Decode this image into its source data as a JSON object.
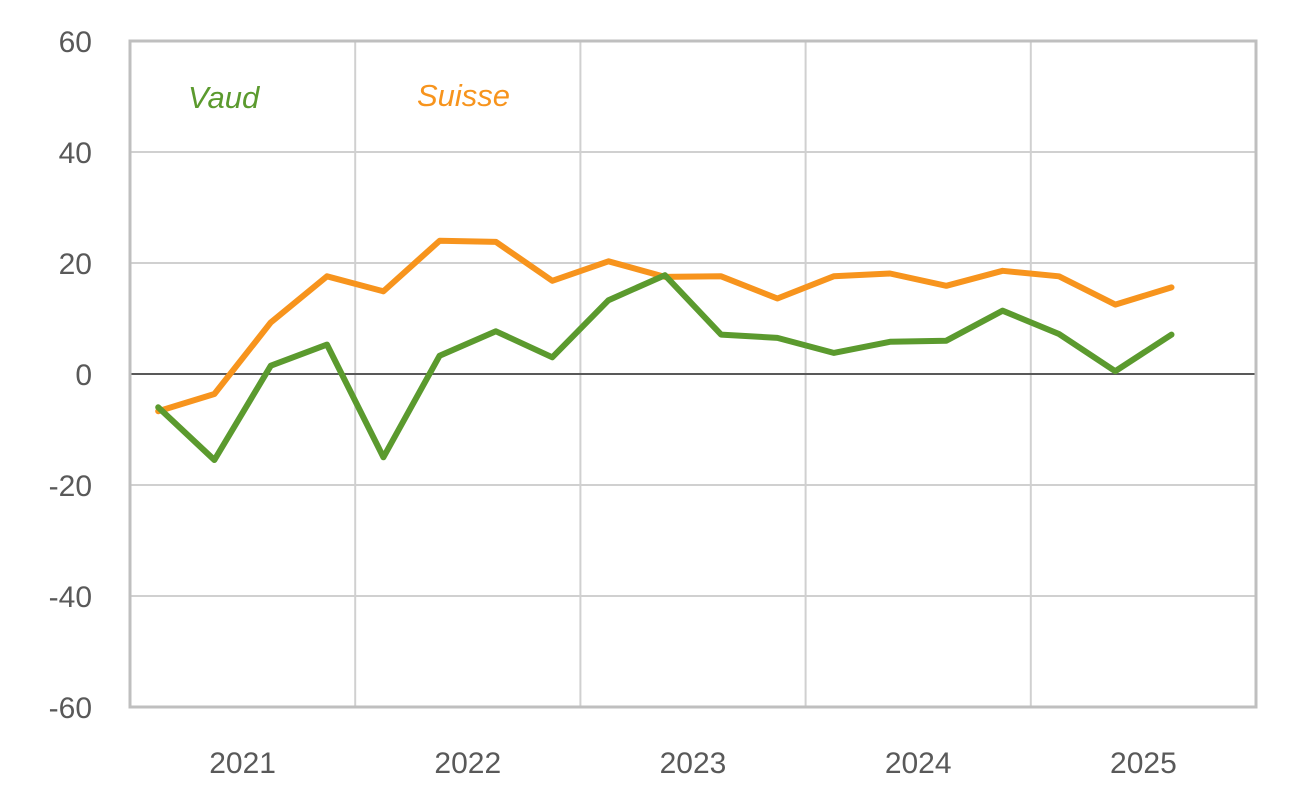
{
  "chart_data": {
    "type": "line",
    "title": "",
    "xlabel": "",
    "ylabel": "",
    "ylim": [
      -60,
      60
    ],
    "y_ticks": [
      "60",
      "40",
      "20",
      "0",
      "-20",
      "-40",
      "-60"
    ],
    "x_tick_labels": [
      "2021",
      "2022",
      "2023",
      "2024",
      "2025"
    ],
    "grid": true,
    "legend": "top-left, inline labels",
    "x": [
      "2021 Q1",
      "2021 Q2",
      "2021 Q3",
      "2021 Q4",
      "2022 Q1",
      "2022 Q2",
      "2022 Q3",
      "2022 Q4",
      "2023 Q1",
      "2023 Q2",
      "2023 Q3",
      "2023 Q4",
      "2024 Q1",
      "2024 Q2",
      "2024 Q3",
      "2024 Q4",
      "2025 Q1",
      "2025 Q2",
      "2025 Q3"
    ],
    "series": [
      {
        "name": "Vaud",
        "color": "#5b9a2e",
        "values": [
          -6,
          -15.5,
          1.5,
          5.3,
          -15,
          3.3,
          7.7,
          3,
          13.3,
          17.8,
          7.1,
          6.5,
          3.8,
          5.8,
          6,
          11.4,
          7.2,
          0.5,
          7.1
        ]
      },
      {
        "name": "Suisse",
        "color": "#f7941d",
        "values": [
          -6.7,
          -3.6,
          9.3,
          17.6,
          14.9,
          24,
          23.8,
          16.8,
          20.3,
          17.5,
          17.6,
          13.6,
          17.6,
          18.1,
          15.9,
          18.6,
          17.6,
          12.5,
          15.6
        ]
      }
    ]
  }
}
